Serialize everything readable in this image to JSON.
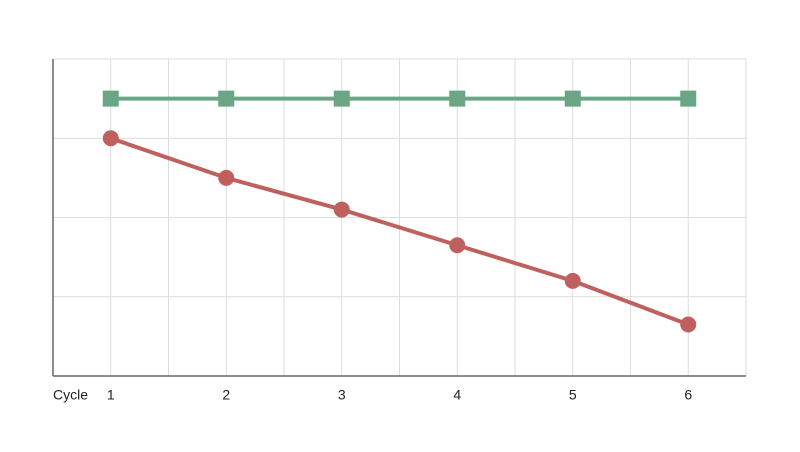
{
  "chart_data": {
    "type": "line",
    "x_label": "Cycle",
    "x": [
      1,
      2,
      3,
      4,
      5,
      6
    ],
    "xlim": [
      0.5,
      6.5
    ],
    "xticks": [
      1,
      2,
      3,
      4,
      5,
      6
    ],
    "xgrid": [
      1.5,
      2.5,
      3.5,
      4.5,
      5.5
    ],
    "ylim": [
      0,
      4
    ],
    "yticks": [
      1,
      2,
      3
    ],
    "grid": true,
    "series": [
      {
        "color": "#6aa686",
        "marker": "square",
        "values": [
          3.5,
          3.5,
          3.5,
          3.5,
          3.5,
          3.5
        ]
      },
      {
        "color": "#c0605e",
        "marker": "circle",
        "values": [
          3.0,
          2.5,
          2.1,
          1.65,
          1.2,
          0.65
        ]
      }
    ]
  }
}
